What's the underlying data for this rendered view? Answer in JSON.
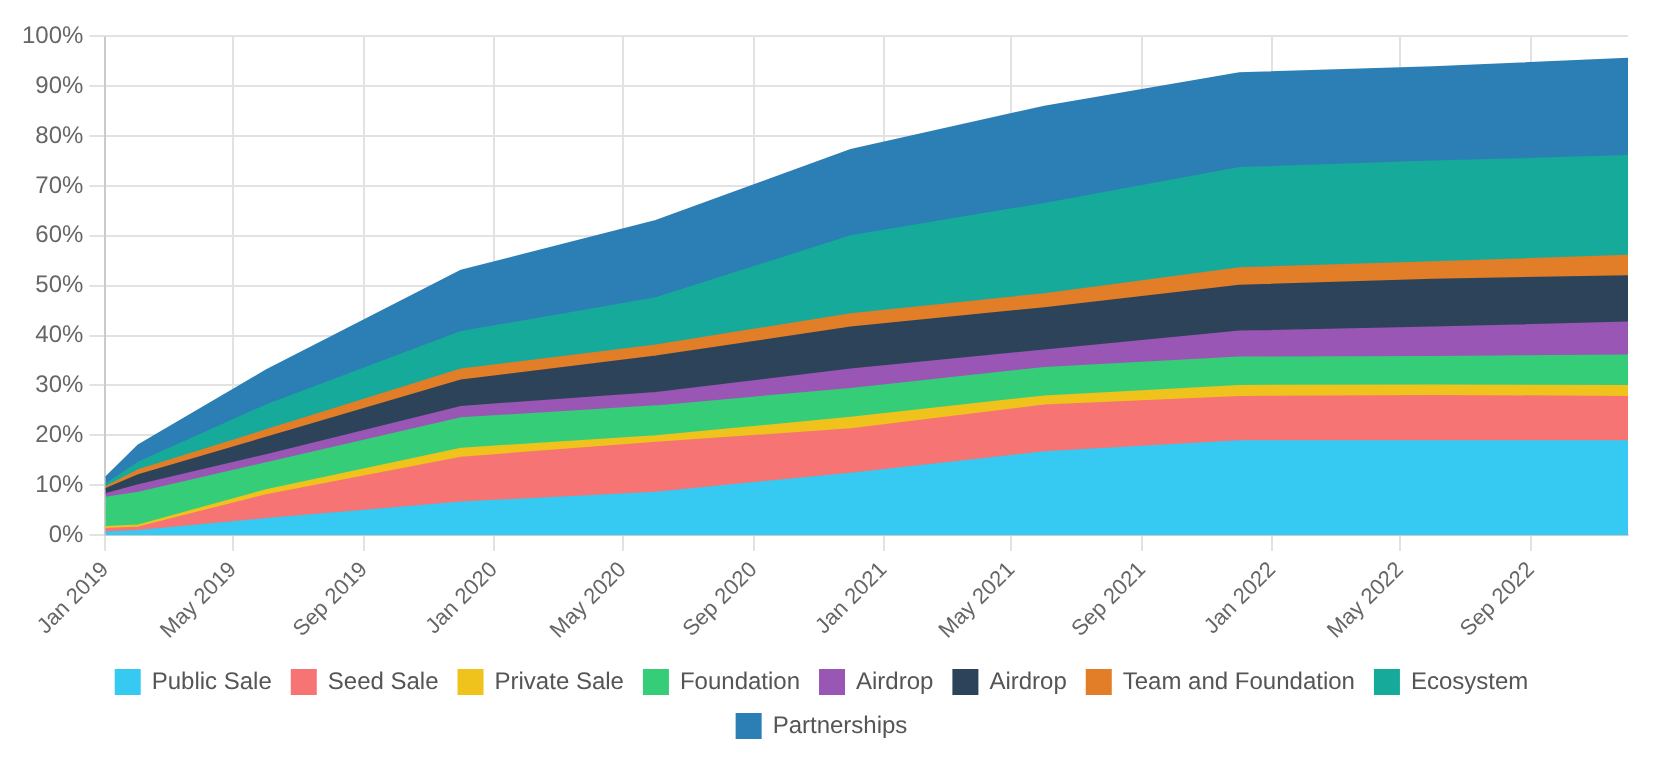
{
  "chart_data": {
    "type": "area",
    "stacked": true,
    "x": [
      "2019-01",
      "2019-02",
      "2019-06",
      "2019-12",
      "2020-06",
      "2020-12",
      "2021-06",
      "2021-12",
      "2022-06",
      "2022-12"
    ],
    "series": [
      {
        "name": "Public Sale",
        "color": "#36caf3",
        "values": [
          0.5,
          0.8,
          3.2,
          6.5,
          8.5,
          12.3,
          16.6,
          18.8,
          18.8,
          18.8
        ]
      },
      {
        "name": "Seed Sale",
        "color": "#f67474",
        "values": [
          0.7,
          0.7,
          4.8,
          9.0,
          10.0,
          8.9,
          9.4,
          8.9,
          9.1,
          8.9
        ]
      },
      {
        "name": "Private Sale",
        "color": "#efc31c",
        "values": [
          0.4,
          0.4,
          1.0,
          1.8,
          1.3,
          2.3,
          1.8,
          2.2,
          2.1,
          2.2
        ]
      },
      {
        "name": "Foundation",
        "color": "#36cd78",
        "values": [
          5.9,
          6.6,
          5.4,
          6.1,
          6.0,
          5.8,
          5.7,
          5.7,
          5.7,
          6.1
        ]
      },
      {
        "name": "Airdrop",
        "color": "#9a56b5",
        "values": [
          0.7,
          1.5,
          1.6,
          2.3,
          2.7,
          3.9,
          3.5,
          5.2,
          5.9,
          6.6
        ]
      },
      {
        "name": "Airdrop",
        "color": "#2d4359",
        "values": [
          1.0,
          2.0,
          3.5,
          5.3,
          7.3,
          8.4,
          8.5,
          9.2,
          9.6,
          9.3
        ]
      },
      {
        "name": "Team and Foundation",
        "color": "#e27d28",
        "values": [
          0.4,
          1.0,
          1.5,
          2.2,
          2.2,
          2.7,
          2.8,
          3.5,
          3.5,
          4.1
        ]
      },
      {
        "name": "Ecosystem",
        "color": "#16aa9a",
        "values": [
          0.5,
          1.5,
          5.0,
          7.5,
          9.5,
          15.6,
          18.1,
          20.1,
          20.2,
          20.0
        ]
      },
      {
        "name": "Partnerships",
        "color": "#2b7fb5",
        "values": [
          1.4,
          3.5,
          7.0,
          12.3,
          15.5,
          17.3,
          19.5,
          19.0,
          18.9,
          19.5
        ]
      }
    ],
    "xlim": [
      "2019-01",
      "2022-12"
    ],
    "xticks": [
      {
        "value": "2019-01",
        "label": "Jan 2019"
      },
      {
        "value": "2019-05",
        "label": "May 2019"
      },
      {
        "value": "2019-09",
        "label": "Sep 2019"
      },
      {
        "value": "2020-01",
        "label": "Jan 2020"
      },
      {
        "value": "2020-05",
        "label": "May 2020"
      },
      {
        "value": "2020-09",
        "label": "Sep 2020"
      },
      {
        "value": "2021-01",
        "label": "Jan 2021"
      },
      {
        "value": "2021-05",
        "label": "May 2021"
      },
      {
        "value": "2021-09",
        "label": "Sep 2021"
      },
      {
        "value": "2022-01",
        "label": "Jan 2022"
      },
      {
        "value": "2022-05",
        "label": "May 2022"
      },
      {
        "value": "2022-09",
        "label": "Sep 2022"
      }
    ],
    "ylim": [
      0,
      100
    ],
    "yticks": [
      {
        "value": 0,
        "label": "0%"
      },
      {
        "value": 10,
        "label": "10%"
      },
      {
        "value": 20,
        "label": "20%"
      },
      {
        "value": 30,
        "label": "30%"
      },
      {
        "value": 40,
        "label": "40%"
      },
      {
        "value": 50,
        "label": "50%"
      },
      {
        "value": 60,
        "label": "60%"
      },
      {
        "value": 70,
        "label": "70%"
      },
      {
        "value": 80,
        "label": "80%"
      },
      {
        "value": 90,
        "label": "90%"
      },
      {
        "value": 100,
        "label": "100%"
      }
    ],
    "grid": true,
    "legend": "bottom",
    "marker": "none"
  }
}
